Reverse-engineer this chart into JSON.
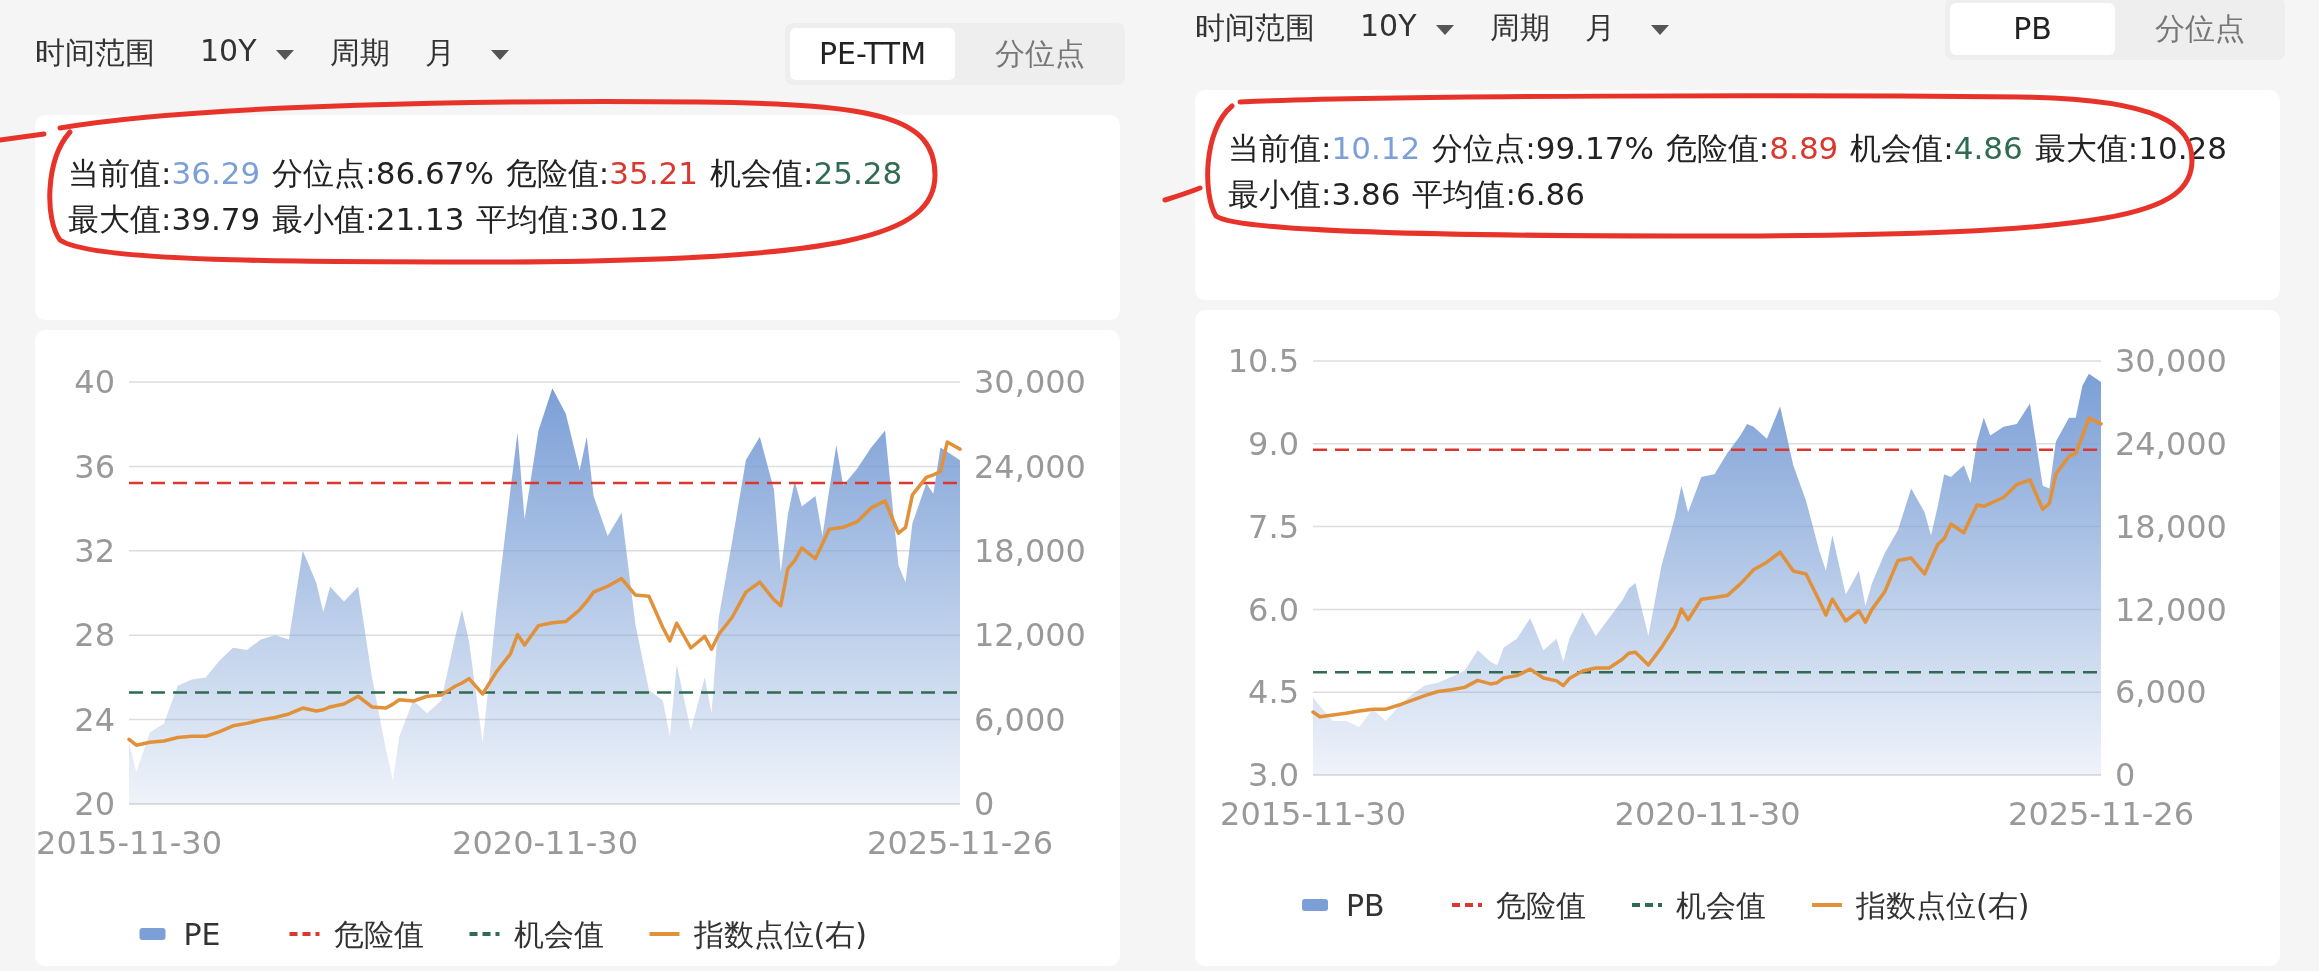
{
  "chart_data": [
    {
      "type": "area",
      "x": [
        "2015-11-30",
        "2016-01",
        "2016-03",
        "2016-05",
        "2016-07",
        "2016-09",
        "2016-11",
        "2017-01",
        "2017-03",
        "2017-05",
        "2017-07",
        "2017-09",
        "2017-11",
        "2018-01",
        "2018-03",
        "2018-04",
        "2018-05",
        "2018-07",
        "2018-09",
        "2018-11",
        "2019-01",
        "2019-02",
        "2019-03",
        "2019-05",
        "2019-07",
        "2019-09",
        "2019-11",
        "2019-12",
        "2020-01",
        "2020-03",
        "2020-05",
        "2020-07",
        "2020-08",
        "2020-09",
        "2020-11",
        "2021-01",
        "2021-03",
        "2021-05",
        "2021-06",
        "2021-07",
        "2021-09",
        "2021-11",
        "2022-01",
        "2022-03",
        "2022-05",
        "2022-06",
        "2022-07",
        "2022-09",
        "2022-11",
        "2022-12",
        "2023-01",
        "2023-03",
        "2023-05",
        "2023-07",
        "2023-09",
        "2023-10",
        "2023-11",
        "2023-12",
        "2024-01",
        "2024-03",
        "2024-04",
        "2024-05",
        "2024-06",
        "2024-07",
        "2024-09",
        "2024-11",
        "2025-01",
        "2025-03",
        "2025-04",
        "2025-05",
        "2025-07",
        "2025-08",
        "2025-09",
        "2025-10",
        "2025-11-26"
      ],
      "xlim": [
        "2015-11-30",
        "2025-11-26"
      ],
      "xticks": [
        "2015-11-30",
        "2020-11-30",
        "2025-11-26"
      ],
      "ylim": [
        20,
        40
      ],
      "yticks": [
        20,
        24,
        28,
        32,
        36,
        40
      ],
      "y2lim": [
        0,
        30000
      ],
      "y2ticks": [
        {
          "value": 0,
          "label": "0"
        },
        {
          "value": 6000,
          "label": "6,000"
        },
        {
          "value": 12000,
          "label": "12,000"
        },
        {
          "value": 18000,
          "label": "18,000"
        },
        {
          "value": 24000,
          "label": "24,000"
        },
        {
          "value": 30000,
          "label": "30,000"
        }
      ],
      "grid": "y",
      "legend": "bottom",
      "series": [
        {
          "name": "PE",
          "color": "#7b9fd6",
          "values": [
            22.9,
            21.5,
            23.4,
            23.8,
            25.6,
            25.9,
            26.0,
            26.8,
            27.4,
            27.3,
            27.8,
            28.0,
            27.8,
            32.0,
            30.5,
            29.1,
            30.3,
            29.6,
            30.3,
            26.0,
            22.6,
            21.1,
            23.2,
            24.9,
            24.3,
            24.9,
            27.9,
            29.2,
            27.7,
            22.9,
            29.3,
            34.9,
            37.6,
            33.5,
            37.7,
            39.7,
            38.5,
            35.8,
            37.4,
            34.6,
            32.7,
            33.8,
            28.5,
            25.4,
            24.9,
            23.2,
            26.6,
            23.5,
            26.0,
            24.3,
            28.8,
            32.4,
            36.3,
            37.4,
            34.9,
            31.0,
            33.7,
            35.3,
            34.1,
            34.6,
            32.7,
            34.9,
            37.0,
            35.1,
            35.9,
            36.9,
            37.7,
            31.3,
            30.5,
            33.3,
            35.2,
            34.7,
            36.9,
            36.7,
            36.29
          ]
        },
        {
          "name": "指数点位(右)",
          "type": "line",
          "axis": "y2",
          "color": "#e0913a",
          "values": [
            4600,
            4180,
            4390,
            4480,
            4730,
            4810,
            4810,
            5150,
            5560,
            5730,
            5980,
            6150,
            6400,
            6820,
            6610,
            6700,
            6900,
            7110,
            7660,
            6900,
            6820,
            7100,
            7410,
            7320,
            7660,
            7740,
            8370,
            8600,
            8910,
            7820,
            9410,
            10670,
            12050,
            11300,
            12680,
            12890,
            12970,
            13810,
            14400,
            15060,
            15480,
            16030,
            14850,
            14770,
            12550,
            11590,
            12850,
            11090,
            11920,
            11000,
            12050,
            13260,
            15060,
            15770,
            14520,
            14100,
            16740,
            17300,
            18200,
            17450,
            18500,
            19540,
            19600,
            19670,
            20080,
            21050,
            21550,
            19250,
            19670,
            21970,
            23220,
            23400,
            23640,
            25730,
            25230
          ]
        }
      ],
      "ref_lines": [
        {
          "axis": "y",
          "value": 35.21,
          "label": "危险值",
          "color": "#d9382f",
          "line_style": "dashed"
        },
        {
          "axis": "y",
          "value": 25.28,
          "label": "机会值",
          "color": "#2f6b4f",
          "line_style": "dashed"
        }
      ],
      "annotations": [
        "时间范围",
        "10Y",
        "周期",
        "月",
        "PE-TTM",
        "分位点",
        "当前值:36.29",
        "分位点:86.67%",
        "危险值:35.21",
        "机会值:25.28",
        "最大值:39.79",
        "最小值:21.13",
        "平均值:30.12"
      ]
    },
    {
      "type": "area",
      "x": [
        "2015-11-30",
        "2016-01",
        "2016-03",
        "2016-05",
        "2016-07",
        "2016-09",
        "2016-11",
        "2017-01",
        "2017-03",
        "2017-05",
        "2017-07",
        "2017-09",
        "2017-11",
        "2018-01",
        "2018-03",
        "2018-04",
        "2018-05",
        "2018-07",
        "2018-09",
        "2018-11",
        "2019-01",
        "2019-02",
        "2019-03",
        "2019-05",
        "2019-07",
        "2019-09",
        "2019-11",
        "2019-12",
        "2020-01",
        "2020-03",
        "2020-05",
        "2020-07",
        "2020-08",
        "2020-09",
        "2020-11",
        "2021-01",
        "2021-03",
        "2021-05",
        "2021-06",
        "2021-07",
        "2021-09",
        "2021-11",
        "2022-01",
        "2022-03",
        "2022-05",
        "2022-06",
        "2022-07",
        "2022-09",
        "2022-11",
        "2022-12",
        "2023-01",
        "2023-03",
        "2023-05",
        "2023-07",
        "2023-09",
        "2023-10",
        "2023-11",
        "2023-12",
        "2024-01",
        "2024-03",
        "2024-04",
        "2024-05",
        "2024-06",
        "2024-07",
        "2024-09",
        "2024-11",
        "2025-01",
        "2025-03",
        "2025-04",
        "2025-05",
        "2025-07",
        "2025-08",
        "2025-09",
        "2025-10",
        "2025-11-26"
      ],
      "xlim": [
        "2015-11-30",
        "2025-11-26"
      ],
      "xticks": [
        "2015-11-30",
        "2020-11-30",
        "2025-11-26"
      ],
      "ylim": [
        3,
        10.5
      ],
      "yticks": [
        {
          "value": 3,
          "label": "3.0"
        },
        4.5,
        {
          "value": 6,
          "label": "6.0"
        },
        7.5,
        {
          "value": 9,
          "label": "9.0"
        },
        10.5
      ],
      "y2lim": [
        0,
        30000
      ],
      "y2ticks": [
        {
          "value": 0,
          "label": "0"
        },
        {
          "value": 6000,
          "label": "6,000"
        },
        {
          "value": 12000,
          "label": "12,000"
        },
        {
          "value": 18000,
          "label": "18,000"
        },
        {
          "value": 24000,
          "label": "24,000"
        },
        {
          "value": 30000,
          "label": "30,000"
        }
      ],
      "grid": "y",
      "legend": "bottom",
      "series": [
        {
          "name": "PB",
          "color": "#7b9fd6",
          "values": [
            4.41,
            4.25,
            3.98,
            3.98,
            3.87,
            4.19,
            3.98,
            4.25,
            4.46,
            4.62,
            4.67,
            4.78,
            4.89,
            5.26,
            5.05,
            4.99,
            5.31,
            5.47,
            5.84,
            5.26,
            5.47,
            5.05,
            5.47,
            5.95,
            5.52,
            5.84,
            6.16,
            6.38,
            6.48,
            5.52,
            6.8,
            7.66,
            8.24,
            7.76,
            8.4,
            8.45,
            8.83,
            9.15,
            9.36,
            9.31,
            9.09,
            9.68,
            8.61,
            7.97,
            7.07,
            6.7,
            7.34,
            6.27,
            6.7,
            6.06,
            6.48,
            7.02,
            7.44,
            8.19,
            7.76,
            7.34,
            7.87,
            8.45,
            8.4,
            8.61,
            8.29,
            9.04,
            9.47,
            9.15,
            9.31,
            9.36,
            9.73,
            8.24,
            8.19,
            9.04,
            9.47,
            9.47,
            10.05,
            10.27,
            10.12
          ]
        },
        {
          "name": "指数点位(右)",
          "type": "line",
          "axis": "y2",
          "color": "#e0913a",
          "values": [
            4560,
            4220,
            4350,
            4470,
            4640,
            4770,
            4770,
            5070,
            5410,
            5750,
            6050,
            6180,
            6350,
            6860,
            6600,
            6690,
            7030,
            7200,
            7670,
            7030,
            6820,
            6480,
            6990,
            7540,
            7750,
            7750,
            8390,
            8820,
            8900,
            7970,
            9250,
            10740,
            12020,
            11250,
            12740,
            12870,
            13000,
            13850,
            14360,
            14870,
            15420,
            16150,
            14780,
            14570,
            12650,
            11590,
            12740,
            11160,
            11890,
            11080,
            12020,
            13290,
            15550,
            15720,
            14570,
            15640,
            16700,
            17130,
            18190,
            17550,
            18620,
            19560,
            19470,
            19680,
            20110,
            21050,
            21390,
            19260,
            19680,
            21820,
            23090,
            23310,
            24580,
            25860,
            25440
          ]
        }
      ],
      "ref_lines": [
        {
          "axis": "y",
          "value": 8.89,
          "label": "危险值",
          "color": "#d9382f",
          "line_style": "dashed"
        },
        {
          "axis": "y",
          "value": 4.86,
          "label": "机会值",
          "color": "#2f6b4f",
          "line_style": "dashed"
        }
      ],
      "annotations": [
        "时间范围",
        "10Y",
        "周期",
        "月",
        "PB",
        "分位点",
        "当前值:10.12",
        "分位点:99.17%",
        "危险值:8.89",
        "机会值:4.86",
        "最大值:10.28",
        "最小值:3.86",
        "平均值:6.86"
      ]
    }
  ]
}
